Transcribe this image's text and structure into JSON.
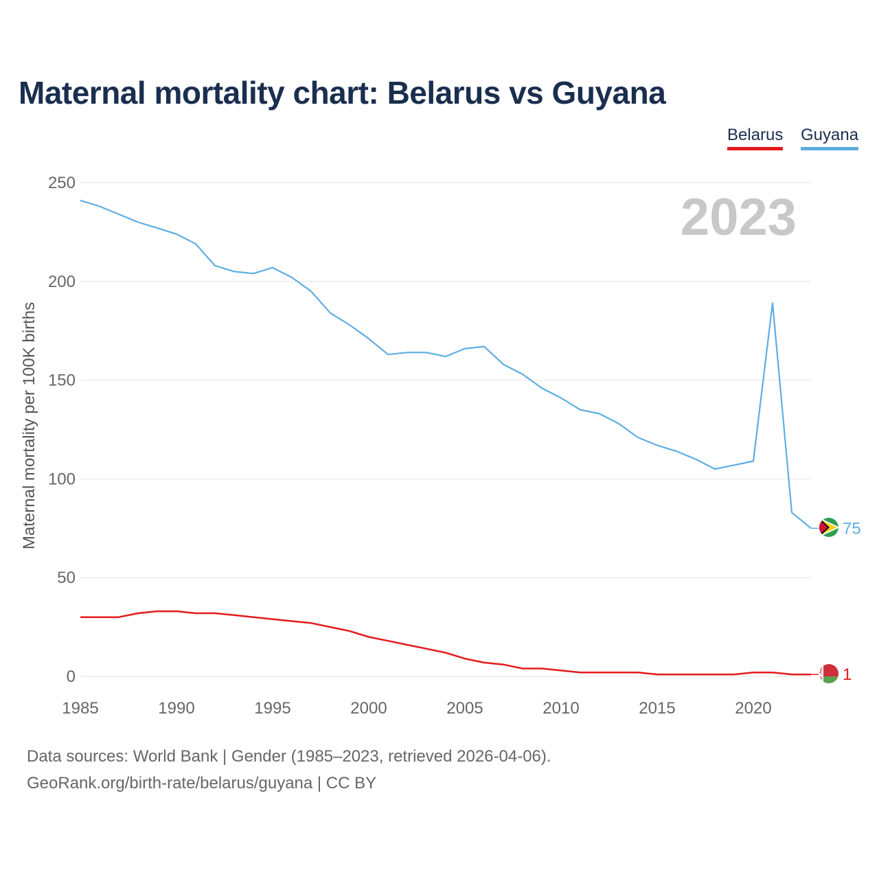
{
  "chart_data": {
    "type": "line",
    "title": "Maternal mortality chart: Belarus vs Guyana",
    "ylabel": "Maternal mortality per 100K births",
    "xlabel": "",
    "x": [
      1985,
      1986,
      1987,
      1988,
      1989,
      1990,
      1991,
      1992,
      1993,
      1994,
      1995,
      1996,
      1997,
      1998,
      1999,
      2000,
      2001,
      2002,
      2003,
      2004,
      2005,
      2006,
      2007,
      2008,
      2009,
      2010,
      2011,
      2012,
      2013,
      2014,
      2015,
      2016,
      2017,
      2018,
      2019,
      2020,
      2021,
      2022,
      2023
    ],
    "xlim": [
      1985,
      2023
    ],
    "ylim": [
      0,
      250
    ],
    "x_ticks": [
      1985,
      1990,
      1995,
      2000,
      2005,
      2010,
      2015,
      2020
    ],
    "y_ticks": [
      0,
      50,
      100,
      150,
      200,
      250
    ],
    "grid": true,
    "legend": "top-right",
    "year_label": "2023",
    "series": [
      {
        "name": "Belarus",
        "color": "#e41a1c",
        "flag": "belarus-flag-icon",
        "end_label": "1",
        "values": [
          30,
          30,
          30,
          32,
          33,
          33,
          32,
          32,
          31,
          30,
          29,
          28,
          27,
          25,
          23,
          20,
          18,
          16,
          14,
          12,
          9,
          7,
          6,
          4,
          4,
          3,
          2,
          2,
          2,
          2,
          1,
          1,
          1,
          1,
          1,
          2,
          2,
          1,
          1
        ]
      },
      {
        "name": "Guyana",
        "color": "#5dade2",
        "flag": "guyana-flag-icon",
        "end_label": "75",
        "values": [
          241,
          238,
          234,
          230,
          227,
          224,
          219,
          208,
          205,
          204,
          207,
          202,
          195,
          184,
          178,
          171,
          163,
          164,
          164,
          162,
          166,
          167,
          158,
          153,
          146,
          141,
          135,
          133,
          128,
          121,
          117,
          114,
          110,
          105,
          107,
          109,
          189,
          83,
          75
        ]
      }
    ]
  },
  "footer": {
    "source": "Data sources: World Bank | Gender (1985–2023, retrieved 2026-04-06).",
    "credit": "GeoRank.org/birth-rate/belarus/guyana | CC BY"
  }
}
